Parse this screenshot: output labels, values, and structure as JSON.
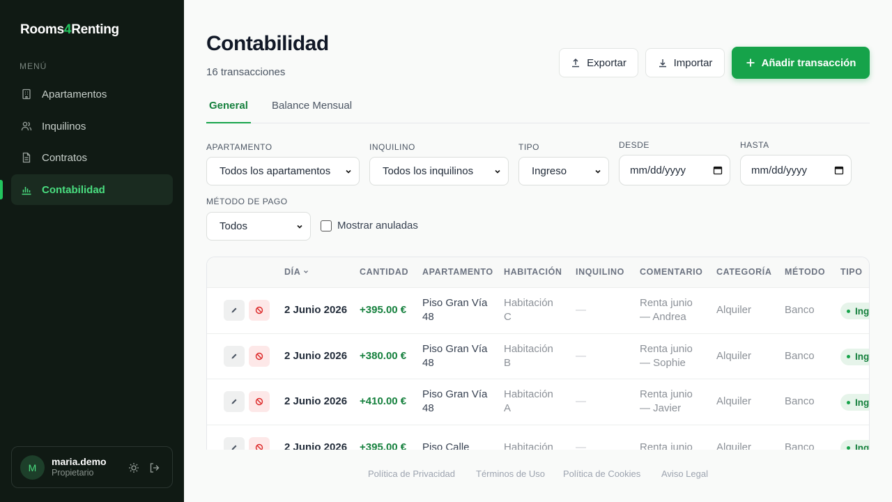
{
  "sidebar": {
    "brand_start": "Rooms",
    "brand_accent": "4",
    "brand_end": "Renting",
    "menu_label": "MENÚ",
    "menu": [
      "Apartamentos",
      "Inquilinos",
      "Contratos",
      "Contabilidad"
    ],
    "user": {
      "initial": "M",
      "name": "maria.demo",
      "role": "Propietario"
    }
  },
  "header": {
    "title": "Contabilidad",
    "subtitle": "16 transacciones",
    "buttons": [
      "Exportar",
      "Importar",
      "Añadir transacción"
    ]
  },
  "tabs": [
    "General",
    "Balance Mensual"
  ],
  "filters": [
    {
      "label": "APARTAMENTO",
      "value": "Todos los apartamentos"
    },
    {
      "label": "INQUILINO",
      "value": "Todos los inquilinos"
    },
    {
      "label": "TIPO",
      "value": "Ingreso"
    },
    {
      "label": "DESDE",
      "value": "mm/dd/yyyy"
    },
    {
      "label": "HASTA",
      "value": "mm/dd/yyyy"
    },
    {
      "label": "MÉTODO DE PAGO",
      "value": "Todos"
    }
  ],
  "show_voided": "Mostrar anuladas",
  "table": {
    "columns": [
      "DÍA",
      "CANTIDAD",
      "APARTAMENTO",
      "HABITACIÓN",
      "INQUILINO",
      "COMENTARIO",
      "CATEGORÍA",
      "MÉTODO",
      "TIPO"
    ],
    "rows": [
      [
        "2 Junio 2026",
        "+395.00 €",
        "Piso Gran Vía 48",
        "Habitación C",
        "—",
        "Renta junio — Andrea",
        "Alquiler",
        "Banco",
        "Ingreso"
      ],
      [
        "2 Junio 2026",
        "+380.00 €",
        "Piso Gran Vía 48",
        "Habitación B",
        "—",
        "Renta junio — Sophie",
        "Alquiler",
        "Banco",
        "Ingreso"
      ],
      [
        "2 Junio 2026",
        "+410.00 €",
        "Piso Gran Vía 48",
        "Habitación A",
        "—",
        "Renta junio — Javier",
        "Alquiler",
        "Banco",
        "Ingreso"
      ],
      [
        "2 Junio 2026",
        "+395.00 €",
        "Piso Calle",
        "Habitación",
        "—",
        "Renta junio —",
        "Alquiler",
        "Banco",
        "Ingreso"
      ]
    ]
  },
  "footer": [
    "Política de Privacidad",
    "Términos de Uso",
    "Política de Cookies",
    "Aviso Legal"
  ]
}
